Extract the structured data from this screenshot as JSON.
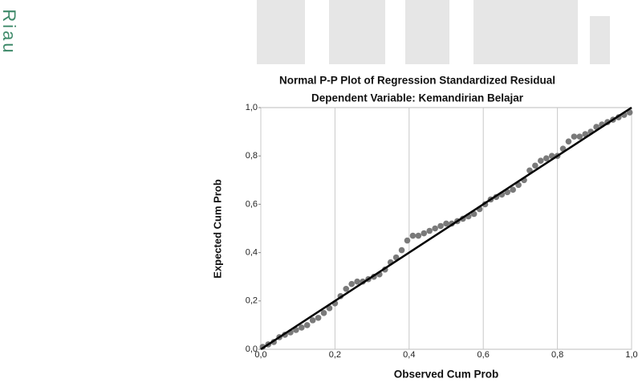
{
  "watermark": "Riau",
  "chart_data": {
    "type": "scatter",
    "title": "Normal P-P Plot of Regression Standardized Residual",
    "subtitle": "Dependent Variable: Kemandirian Belajar",
    "xlabel": "Observed Cum Prob",
    "ylabel": "Expected Cum Prob",
    "color": "#7a7a7a",
    "line_color": "#000000",
    "grid": "x",
    "xlim": [
      0,
      1
    ],
    "ylim": [
      0,
      1
    ],
    "xticks": [
      {
        "value": 0,
        "label": "0,0"
      },
      {
        "value": 0.2,
        "label": "0,2"
      },
      {
        "value": 0.4,
        "label": "0,4"
      },
      {
        "value": 0.6,
        "label": "0,6"
      },
      {
        "value": 0.8,
        "label": "0,8"
      },
      {
        "value": 1,
        "label": "1,0"
      }
    ],
    "yticks": [
      {
        "value": 0,
        "label": "0,0"
      },
      {
        "value": 0.2,
        "label": "0,2"
      },
      {
        "value": 0.4,
        "label": "0,4"
      },
      {
        "value": 0.6,
        "label": "0,6"
      },
      {
        "value": 0.8,
        "label": "0,8"
      },
      {
        "value": 1,
        "label": "1,0"
      }
    ],
    "x": [
      0.005,
      0.02,
      0.035,
      0.05,
      0.065,
      0.08,
      0.095,
      0.11,
      0.125,
      0.14,
      0.155,
      0.17,
      0.185,
      0.2,
      0.215,
      0.23,
      0.245,
      0.26,
      0.275,
      0.29,
      0.305,
      0.32,
      0.335,
      0.35,
      0.365,
      0.38,
      0.395,
      0.41,
      0.425,
      0.44,
      0.455,
      0.47,
      0.485,
      0.5,
      0.515,
      0.53,
      0.545,
      0.56,
      0.575,
      0.59,
      0.605,
      0.62,
      0.635,
      0.65,
      0.665,
      0.68,
      0.695,
      0.71,
      0.725,
      0.74,
      0.755,
      0.77,
      0.785,
      0.8,
      0.815,
      0.83,
      0.845,
      0.86,
      0.875,
      0.89,
      0.905,
      0.92,
      0.935,
      0.95,
      0.965,
      0.98,
      0.995
    ],
    "values": [
      0.01,
      0.02,
      0.03,
      0.05,
      0.06,
      0.07,
      0.08,
      0.09,
      0.1,
      0.12,
      0.13,
      0.15,
      0.17,
      0.19,
      0.22,
      0.25,
      0.27,
      0.28,
      0.28,
      0.29,
      0.3,
      0.31,
      0.33,
      0.36,
      0.38,
      0.41,
      0.45,
      0.47,
      0.47,
      0.48,
      0.49,
      0.5,
      0.51,
      0.52,
      0.52,
      0.53,
      0.54,
      0.55,
      0.56,
      0.58,
      0.6,
      0.62,
      0.63,
      0.64,
      0.65,
      0.66,
      0.68,
      0.7,
      0.74,
      0.76,
      0.78,
      0.79,
      0.8,
      0.8,
      0.83,
      0.86,
      0.88,
      0.88,
      0.89,
      0.9,
      0.92,
      0.93,
      0.94,
      0.95,
      0.96,
      0.97,
      0.98
    ]
  }
}
